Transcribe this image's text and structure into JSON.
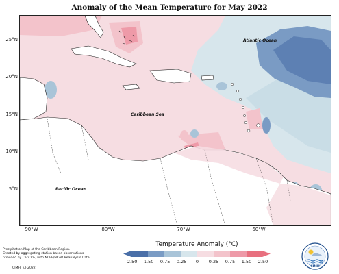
{
  "title": "Anomaly of the Mean Temperature for May 2022",
  "map": {
    "lat_ticks": [
      "25°N",
      "20°N",
      "15°N",
      "10°N",
      "5°N"
    ],
    "lon_ticks": [
      "90°W",
      "80°W",
      "70°W",
      "60°W"
    ],
    "labels": {
      "atlantic": "Atlantic Ocean",
      "caribbean": "Caribbean Sea",
      "pacific": "Pacific Ocean"
    }
  },
  "legend": {
    "title": "Temperature Anomaly (°C)",
    "ticks": [
      "-2.50",
      "-1.50",
      "-0.75",
      "-0.25",
      "0",
      "0.25",
      "0.75",
      "1.50",
      "2.50"
    ],
    "colors": {
      "neg_strong": "#4a6fa8",
      "neg_mid": "#7a9bc4",
      "neg_light": "#a9c4d8",
      "neutral": "#d7e6ec",
      "pos_light": "#f6dde2",
      "pos_mid": "#f3c3cb",
      "pos_strong": "#ee9aa8",
      "pos_max": "#e8707f"
    }
  },
  "footnote": {
    "lines": [
      "Precipitation Map of the Caribbean Region.",
      "Created by aggregating station based observations",
      "provided by CariCOF, with NCEP/NCAR Reanalysis Data."
    ],
    "credit": "CIMH. Jul-2022"
  },
  "logo": {
    "text": "CIMH"
  }
}
